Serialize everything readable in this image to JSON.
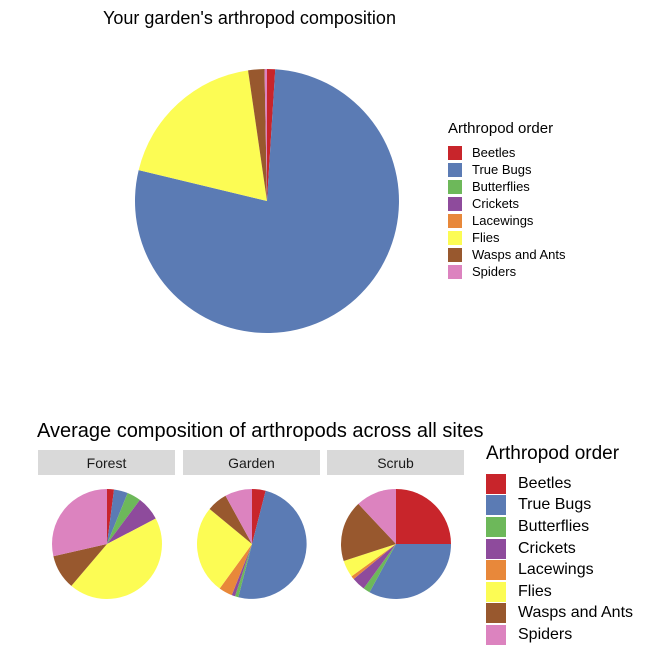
{
  "titles": {
    "main": "Your garden's arthropod composition",
    "facets": "Average composition of arthropods across all sites"
  },
  "legend_title": "Arthropod order",
  "colors": {
    "Beetles": "#c8252b",
    "True Bugs": "#5b7bb4",
    "Butterflies": "#6db85a",
    "Crickets": "#8e4b9c",
    "Lacewings": "#e8883a",
    "Flies": "#fcfc54",
    "Wasps and Ants": "#98582e",
    "Spiders": "#dc83bf"
  },
  "chart_data": [
    {
      "type": "pie",
      "title": "Your garden's arthropod composition",
      "legend_title": "Arthropod order",
      "legend_position": "right",
      "categories": [
        "Beetles",
        "True Bugs",
        "Butterflies",
        "Crickets",
        "Lacewings",
        "Flies",
        "Wasps and Ants",
        "Spiders"
      ],
      "values": [
        1,
        78,
        0,
        0,
        0,
        19,
        2,
        0.3
      ]
    },
    {
      "type": "pie",
      "title": "Average composition of arthropods across all sites",
      "legend_title": "Arthropod order",
      "legend_position": "right",
      "categories": [
        "Beetles",
        "True Bugs",
        "Butterflies",
        "Crickets",
        "Lacewings",
        "Flies",
        "Wasps and Ants",
        "Spiders"
      ],
      "facets": [
        {
          "name": "Forest",
          "values": [
            2,
            4,
            4,
            7,
            0,
            43,
            10,
            28
          ]
        },
        {
          "name": "Garden",
          "values": [
            4,
            50,
            1,
            1,
            4,
            26,
            6,
            8
          ]
        },
        {
          "name": "Scrub",
          "values": [
            25,
            33,
            2,
            4,
            1,
            5,
            18,
            12
          ]
        }
      ]
    }
  ]
}
